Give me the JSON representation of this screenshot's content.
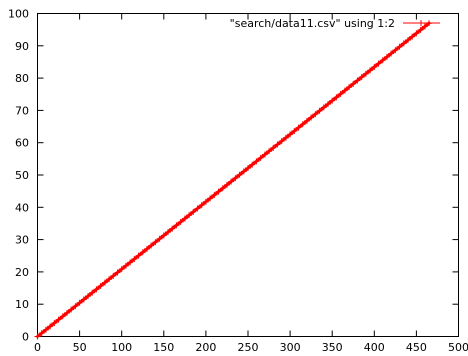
{
  "chart_data": {
    "type": "scatter",
    "title": "",
    "xlabel": "",
    "ylabel": "",
    "xlim": [
      0,
      500
    ],
    "ylim": [
      0,
      100
    ],
    "xticks": [
      0,
      50,
      100,
      150,
      200,
      250,
      300,
      350,
      400,
      450,
      500
    ],
    "yticks": [
      0,
      10,
      20,
      30,
      40,
      50,
      60,
      70,
      80,
      90,
      100
    ],
    "grid": false,
    "legend_position": "top-right",
    "marker": "plus",
    "series": [
      {
        "name": "\"search/data11.csv\" using 1:2",
        "color": "#ff0000",
        "x_range": [
          0,
          465
        ],
        "y_range": [
          0,
          97
        ],
        "x_step": 5
      }
    ]
  }
}
